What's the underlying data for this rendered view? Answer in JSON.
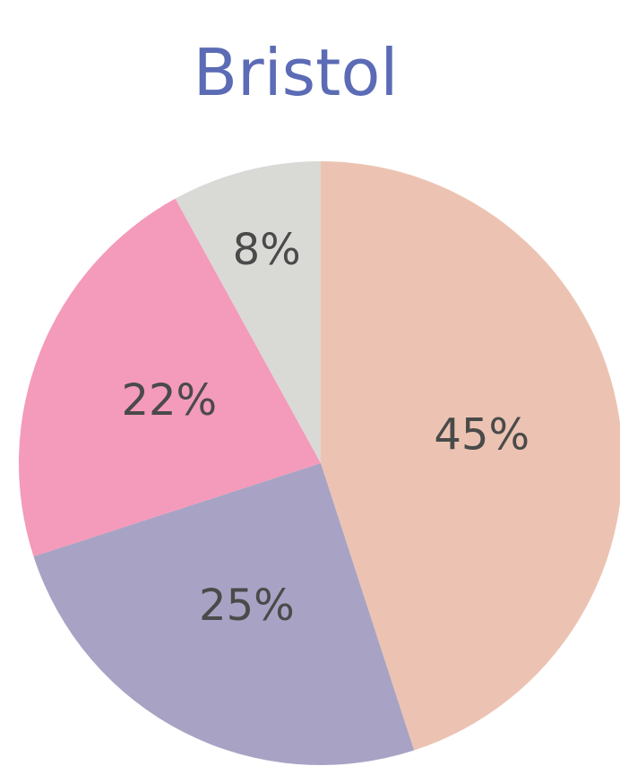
{
  "chart_data": {
    "type": "pie",
    "title": "Bristol",
    "values": [
      45,
      25,
      22,
      8
    ],
    "value_labels": [
      "45%",
      "25%",
      "22%",
      "8%"
    ],
    "colors": [
      "#ecc3b2",
      "#a8a3c4",
      "#f49aba",
      "#d9d9d6"
    ]
  }
}
